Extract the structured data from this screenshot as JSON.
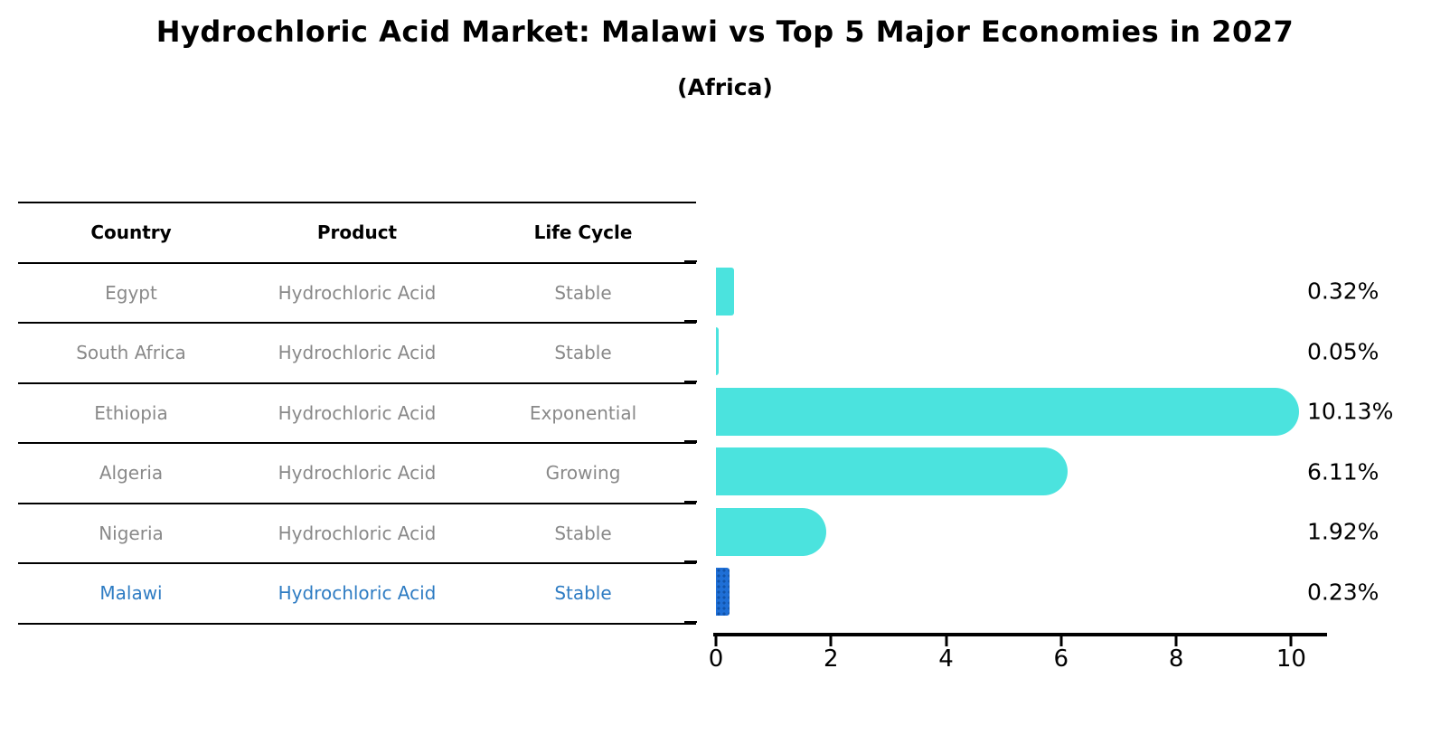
{
  "title": "Hydrochloric Acid Market: Malawi vs Top 5 Major Economies in 2027",
  "subtitle": "(Africa)",
  "table": {
    "headers": [
      "Country",
      "Product",
      "Life Cycle"
    ],
    "rows": [
      {
        "country": "Egypt",
        "product": "Hydrochloric Acid",
        "life_cycle": "Stable"
      },
      {
        "country": "South Africa",
        "product": "Hydrochloric Acid",
        "life_cycle": "Stable"
      },
      {
        "country": "Ethiopia",
        "product": "Hydrochloric Acid",
        "life_cycle": "Exponential"
      },
      {
        "country": "Algeria",
        "product": "Hydrochloric Acid",
        "life_cycle": "Growing"
      },
      {
        "country": "Nigeria",
        "product": "Hydrochloric Acid",
        "life_cycle": "Stable"
      },
      {
        "country": "Malawi",
        "product": "Hydrochloric Acid",
        "life_cycle": "Stable"
      }
    ],
    "highlighted_row": "Malawi"
  },
  "chart_data": {
    "type": "bar",
    "orientation": "horizontal",
    "categories": [
      "Egypt",
      "South Africa",
      "Ethiopia",
      "Algeria",
      "Nigeria",
      "Malawi"
    ],
    "values": [
      0.32,
      0.05,
      10.13,
      6.11,
      1.92,
      0.23
    ],
    "value_labels": [
      "0.32%",
      "0.05%",
      "10.13%",
      "6.11%",
      "1.92%",
      "0.23%"
    ],
    "xticks": [
      0,
      2,
      4,
      6,
      8,
      10
    ],
    "xlim": [
      0,
      10.7
    ],
    "grid": false,
    "legend": false,
    "title": "Hydrochloric Acid Market: Malawi vs Top 5 Major Economies in 2027",
    "subtitle": "(Africa)",
    "bar_color": "#4be3de",
    "highlight_bar_color": "#1f6fd6",
    "highlight_index": 5
  },
  "colors": {
    "background": "#ffffff",
    "table_text": "#898989",
    "table_header_text": "#000000",
    "highlight_text": "#2e7cc3",
    "axis": "#000000"
  }
}
